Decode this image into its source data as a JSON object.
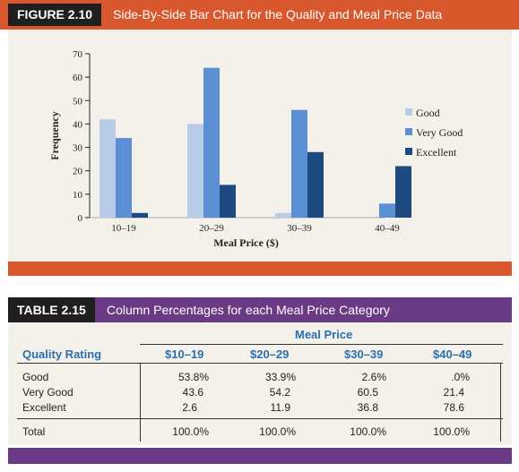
{
  "figure": {
    "label": "FIGURE 2.10",
    "title": "Side-By-Side Bar Chart for the Quality and Meal Price Data"
  },
  "chart_data": {
    "type": "bar",
    "categories": [
      "10–19",
      "20–29",
      "30–39",
      "40–49"
    ],
    "series": [
      {
        "name": "Good",
        "values": [
          42,
          40,
          2,
          0
        ],
        "color": "#b8cbe8"
      },
      {
        "name": "Very Good",
        "values": [
          34,
          64,
          46,
          6
        ],
        "color": "#5b8fd4"
      },
      {
        "name": "Excellent",
        "values": [
          2,
          14,
          28,
          22
        ],
        "color": "#1d4a80"
      }
    ],
    "yticks": [
      0,
      10,
      20,
      30,
      40,
      50,
      60,
      70
    ],
    "ylim": [
      0,
      70
    ],
    "xlabel": "Meal Price ($)",
    "ylabel": "Frequency",
    "legend_position": "right"
  },
  "table": {
    "label": "TABLE 2.15",
    "title": "Column Percentages for each Meal Price Category",
    "group_header": "Meal Price",
    "row_header": "Quality Rating",
    "columns": [
      "$10–19",
      "$20–29",
      "$30–39",
      "$40–49"
    ],
    "rows": [
      {
        "label": "Good",
        "values": [
          "53.8%",
          "33.9%",
          "2.6%",
          ".0%"
        ]
      },
      {
        "label": "Very Good",
        "values": [
          "43.6",
          "54.2",
          "60.5",
          "21.4"
        ]
      },
      {
        "label": "Excellent",
        "values": [
          "2.6",
          "11.9",
          "36.8",
          "78.6"
        ]
      }
    ],
    "total": {
      "label": "Total",
      "values": [
        "100.0%",
        "100.0%",
        "100.0%",
        "100.0%"
      ]
    }
  }
}
